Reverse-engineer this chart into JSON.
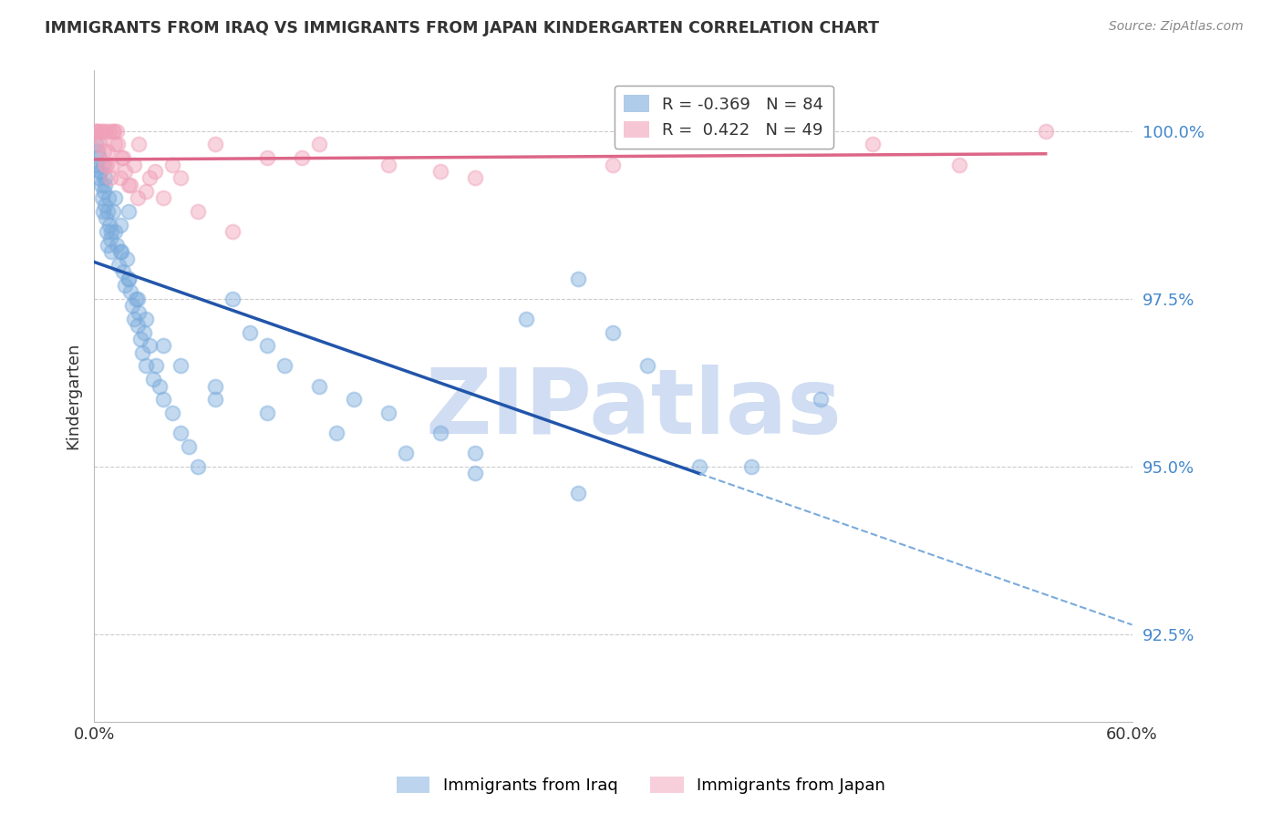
{
  "title": "IMMIGRANTS FROM IRAQ VS IMMIGRANTS FROM JAPAN KINDERGARTEN CORRELATION CHART",
  "source": "Source: ZipAtlas.com",
  "ylabel": "Kindergarten",
  "iraq_color": "#7aabdc",
  "japan_color": "#f0a0b8",
  "iraq_line_color": "#2255aa",
  "japan_line_color": "#dd6688",
  "iraq_R": -0.369,
  "iraq_N": 84,
  "japan_R": 0.422,
  "japan_N": 49,
  "xmin": 0.0,
  "xmax": 60.0,
  "ymin": 91.2,
  "ymax": 100.9,
  "yticks": [
    92.5,
    95.0,
    97.5,
    100.0
  ],
  "ytick_labels": [
    "92.5%",
    "95.0%",
    "97.5%",
    "100.0%"
  ],
  "iraq_scatter_x": [
    0.1,
    0.15,
    0.2,
    0.25,
    0.3,
    0.35,
    0.4,
    0.45,
    0.5,
    0.55,
    0.6,
    0.65,
    0.7,
    0.75,
    0.8,
    0.85,
    0.9,
    0.95,
    1.0,
    1.1,
    1.2,
    1.3,
    1.4,
    1.5,
    1.6,
    1.7,
    1.8,
    1.9,
    2.0,
    2.1,
    2.2,
    2.3,
    2.4,
    2.5,
    2.6,
    2.7,
    2.8,
    2.9,
    3.0,
    3.2,
    3.4,
    3.6,
    3.8,
    4.0,
    4.5,
    5.0,
    5.5,
    6.0,
    7.0,
    8.0,
    9.0,
    10.0,
    11.0,
    13.0,
    15.0,
    17.0,
    20.0,
    22.0,
    25.0,
    28.0,
    0.5,
    0.8,
    1.0,
    1.5,
    2.0,
    2.5,
    3.0,
    4.0,
    5.0,
    7.0,
    10.0,
    14.0,
    18.0,
    22.0,
    28.0,
    35.0,
    30.0,
    32.0,
    38.0,
    42.0,
    0.3,
    0.6,
    1.2,
    2.0
  ],
  "iraq_scatter_y": [
    99.8,
    99.5,
    99.7,
    99.3,
    99.6,
    99.4,
    99.2,
    99.0,
    98.8,
    99.1,
    98.9,
    99.3,
    98.7,
    98.5,
    98.3,
    99.0,
    98.6,
    98.4,
    98.2,
    98.8,
    98.5,
    98.3,
    98.0,
    98.6,
    98.2,
    97.9,
    97.7,
    98.1,
    97.8,
    97.6,
    97.4,
    97.2,
    97.5,
    97.1,
    97.3,
    96.9,
    96.7,
    97.0,
    96.5,
    96.8,
    96.3,
    96.5,
    96.2,
    96.0,
    95.8,
    95.5,
    95.3,
    95.0,
    96.0,
    97.5,
    97.0,
    96.8,
    96.5,
    96.2,
    96.0,
    95.8,
    95.5,
    95.2,
    97.2,
    97.8,
    99.5,
    98.8,
    98.5,
    98.2,
    97.8,
    97.5,
    97.2,
    96.8,
    96.5,
    96.2,
    95.8,
    95.5,
    95.2,
    94.9,
    94.6,
    95.0,
    97.0,
    96.5,
    95.0,
    96.0,
    99.4,
    99.2,
    99.0,
    98.8
  ],
  "japan_scatter_x": [
    0.1,
    0.2,
    0.3,
    0.4,
    0.5,
    0.6,
    0.7,
    0.8,
    0.9,
    1.0,
    1.1,
    1.2,
    1.3,
    1.5,
    1.7,
    2.0,
    2.3,
    2.6,
    3.0,
    3.5,
    4.0,
    5.0,
    6.0,
    8.0,
    10.0,
    13.0,
    17.0,
    22.0,
    30.0,
    40.0,
    50.0,
    55.0,
    0.15,
    0.35,
    0.55,
    0.75,
    0.95,
    1.15,
    1.35,
    1.55,
    1.8,
    2.1,
    2.5,
    3.2,
    4.5,
    7.0,
    12.0,
    20.0,
    45.0
  ],
  "japan_scatter_y": [
    100.0,
    100.0,
    99.8,
    100.0,
    100.0,
    99.5,
    100.0,
    99.7,
    100.0,
    99.5,
    100.0,
    99.8,
    100.0,
    99.3,
    99.6,
    99.2,
    99.5,
    99.8,
    99.1,
    99.4,
    99.0,
    99.3,
    98.8,
    98.5,
    99.6,
    99.8,
    99.5,
    99.3,
    99.5,
    100.0,
    99.5,
    100.0,
    100.0,
    99.9,
    99.7,
    99.5,
    99.3,
    100.0,
    99.8,
    99.6,
    99.4,
    99.2,
    99.0,
    99.3,
    99.5,
    99.8,
    99.6,
    99.4,
    99.8
  ],
  "watermark": "ZIPatlas",
  "watermark_color": "#c8d8f0",
  "background_color": "#ffffff",
  "grid_color": "#cccccc"
}
